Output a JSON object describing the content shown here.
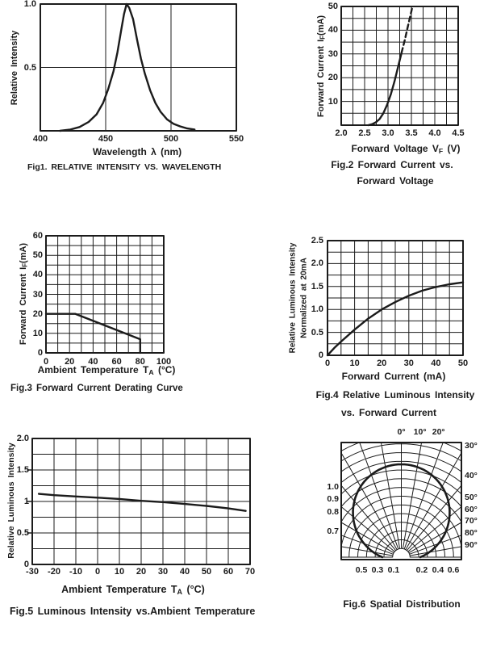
{
  "page": {
    "background": "#ffffff",
    "ink": "#1b1b1b"
  },
  "chart_data": [
    {
      "id": "fig1",
      "type": "line",
      "caption": "Fig1. RELATIVE INTENSITY VS. WAVELENGTH",
      "xlabel": {
        "pre": "Wavelength λ  (nm)",
        "sub": "",
        "post": ""
      },
      "ylabel": {
        "pre": "Relative Intensity",
        "sub": "",
        "post": ""
      },
      "xlim": [
        400,
        550
      ],
      "ylim": [
        0,
        1
      ],
      "xticks": [
        {
          "v": 400,
          "t": "400"
        },
        {
          "v": 450,
          "t": "450"
        },
        {
          "v": 500,
          "t": "500"
        },
        {
          "v": 550,
          "t": "550"
        }
      ],
      "yticks": [
        {
          "v": 0.5,
          "t": "0.5"
        },
        {
          "v": 1,
          "t": "1.0"
        }
      ],
      "xgrid": [
        450,
        500
      ],
      "ygrid": [
        0.5
      ],
      "series": [
        {
          "name": "relative-intensity-spectrum",
          "dash": false,
          "points": [
            [
              415,
              0
            ],
            [
              423,
              0.01
            ],
            [
              430,
              0.03
            ],
            [
              437,
              0.07
            ],
            [
              443,
              0.13
            ],
            [
              448,
              0.22
            ],
            [
              452,
              0.33
            ],
            [
              456,
              0.47
            ],
            [
              459,
              0.62
            ],
            [
              462,
              0.8
            ],
            [
              464,
              0.92
            ],
            [
              466,
              1.0
            ],
            [
              468,
              0.97
            ],
            [
              471,
              0.88
            ],
            [
              474,
              0.72
            ],
            [
              477,
              0.57
            ],
            [
              480,
              0.45
            ],
            [
              484,
              0.32
            ],
            [
              488,
              0.22
            ],
            [
              492,
              0.15
            ],
            [
              497,
              0.09
            ],
            [
              502,
              0.055
            ],
            [
              507,
              0.035
            ],
            [
              512,
              0.02
            ],
            [
              518,
              0.01
            ]
          ]
        }
      ]
    },
    {
      "id": "fig2",
      "type": "line",
      "caption": "Fig.2 Forward Current vs.",
      "caption2": "Forward Voltage",
      "xlabel": {
        "pre": "Forward Voltage V",
        "sub": "F",
        "post": " (V)"
      },
      "ylabel": {
        "pre": "Forward Current I",
        "sub": "F",
        "post": "(mA)"
      },
      "xlim": [
        2.0,
        4.5
      ],
      "ylim": [
        0,
        50
      ],
      "xticks": [
        {
          "v": 2.0,
          "t": "2.0"
        },
        {
          "v": 2.5,
          "t": "2.5"
        },
        {
          "v": 3.0,
          "t": "3.0"
        },
        {
          "v": 3.5,
          "t": "3.5"
        },
        {
          "v": 4.0,
          "t": "4.0"
        },
        {
          "v": 4.5,
          "t": "4.5"
        }
      ],
      "yticks": [
        {
          "v": 10,
          "t": "10"
        },
        {
          "v": 20,
          "t": "20"
        },
        {
          "v": 30,
          "t": "30"
        },
        {
          "v": 40,
          "t": "40"
        },
        {
          "v": 50,
          "t": "50"
        }
      ],
      "xgrid": [
        2.25,
        2.5,
        2.75,
        3.0,
        3.25,
        3.5,
        3.75,
        4.0,
        4.25
      ],
      "ygrid": [
        5,
        10,
        15,
        20,
        25,
        30,
        35,
        40,
        45
      ],
      "series": [
        {
          "name": "iv-curve-solid",
          "dash": false,
          "points": [
            [
              2.58,
              0
            ],
            [
              2.66,
              0.4
            ],
            [
              2.74,
              1.2
            ],
            [
              2.82,
              2.6
            ],
            [
              2.9,
              5
            ],
            [
              2.98,
              8.5
            ],
            [
              3.06,
              13
            ],
            [
              3.14,
              18.5
            ],
            [
              3.22,
              25
            ],
            [
              3.29,
              30.5
            ]
          ]
        },
        {
          "name": "iv-curve-dashed",
          "dash": true,
          "points": [
            [
              3.29,
              30.5
            ],
            [
              3.36,
              36
            ],
            [
              3.43,
              42
            ],
            [
              3.5,
              48
            ],
            [
              3.52,
              50
            ]
          ]
        }
      ]
    },
    {
      "id": "fig3",
      "type": "line",
      "caption": "Fig.3 Forward Current Derating Curve",
      "xlabel": {
        "pre": "Ambient Temperature T",
        "sub": "A",
        "post": " (°C)"
      },
      "ylabel": {
        "pre": "Forward Current I",
        "sub": "F",
        "post": "(mA)"
      },
      "xlim": [
        0,
        100
      ],
      "ylim": [
        0,
        60
      ],
      "xticks": [
        {
          "v": 0,
          "t": "0"
        },
        {
          "v": 20,
          "t": "20"
        },
        {
          "v": 40,
          "t": "40"
        },
        {
          "v": 60,
          "t": "60"
        },
        {
          "v": 80,
          "t": "80"
        },
        {
          "v": 100,
          "t": "100"
        }
      ],
      "yticks": [
        {
          "v": 0,
          "t": "0"
        },
        {
          "v": 10,
          "t": "10"
        },
        {
          "v": 20,
          "t": "20"
        },
        {
          "v": 30,
          "t": "30"
        },
        {
          "v": 40,
          "t": "40"
        },
        {
          "v": 50,
          "t": "50"
        },
        {
          "v": 60,
          "t": "60"
        }
      ],
      "xgrid": [
        10,
        20,
        30,
        40,
        50,
        60,
        70,
        80,
        90
      ],
      "ygrid": [
        5,
        10,
        15,
        20,
        25,
        30,
        35,
        40,
        45,
        50,
        55
      ],
      "series": [
        {
          "name": "derating-curve",
          "dash": false,
          "points": [
            [
              0,
              20
            ],
            [
              25,
              20
            ],
            [
              80,
              7
            ],
            [
              80,
              0
            ]
          ]
        }
      ]
    },
    {
      "id": "fig4",
      "type": "line",
      "caption": "Fig.4 Relative Luminous Intensity",
      "caption2": "vs. Forward Current",
      "xlabel": {
        "pre": "Forward Current (mA)",
        "sub": "",
        "post": ""
      },
      "ylabel": {
        "pre": "Relative Luminous Intensity",
        "sub": "",
        "post": ""
      },
      "ylabel2": {
        "pre": "Normalized at 20mA",
        "sub": "",
        "post": ""
      },
      "xlim": [
        0,
        50
      ],
      "ylim": [
        0,
        2.5
      ],
      "xticks": [
        {
          "v": 0,
          "t": "0"
        },
        {
          "v": 10,
          "t": "10"
        },
        {
          "v": 20,
          "t": "20"
        },
        {
          "v": 30,
          "t": "30"
        },
        {
          "v": 40,
          "t": "40"
        },
        {
          "v": 50,
          "t": "50"
        }
      ],
      "yticks": [
        {
          "v": 0,
          "t": "0"
        },
        {
          "v": 0.5,
          "t": "0.5"
        },
        {
          "v": 1.0,
          "t": "1.0"
        },
        {
          "v": 1.5,
          "t": "1.5"
        },
        {
          "v": 2.0,
          "t": "2.0"
        },
        {
          "v": 2.5,
          "t": "2.5"
        }
      ],
      "xgrid": [
        5,
        10,
        15,
        20,
        25,
        30,
        35,
        40,
        45
      ],
      "ygrid": [
        0.25,
        0.5,
        0.75,
        1.0,
        1.25,
        1.5,
        1.75,
        2.0,
        2.25
      ],
      "series": [
        {
          "name": "luminous-vs-current",
          "dash": false,
          "points": [
            [
              0,
              0
            ],
            [
              2.5,
              0.16
            ],
            [
              5,
              0.3
            ],
            [
              10,
              0.56
            ],
            [
              15,
              0.8
            ],
            [
              20,
              1.0
            ],
            [
              25,
              1.16
            ],
            [
              30,
              1.3
            ],
            [
              35,
              1.41
            ],
            [
              40,
              1.49
            ],
            [
              45,
              1.55
            ],
            [
              50,
              1.59
            ]
          ]
        }
      ]
    },
    {
      "id": "fig5",
      "type": "line",
      "caption": "Fig.5 Luminous Intensity vs.Ambient Temperature",
      "xlabel": {
        "pre": "Ambient Temperature T",
        "sub": "A",
        "post": " (°C)"
      },
      "ylabel": {
        "pre": "Relative Luminous Intensity",
        "sub": "",
        "post": ""
      },
      "xlim": [
        -30,
        70
      ],
      "ylim": [
        0,
        2
      ],
      "xticks": [
        {
          "v": -30,
          "t": "-30"
        },
        {
          "v": -20,
          "t": "-20"
        },
        {
          "v": -10,
          "t": "-10"
        },
        {
          "v": 0,
          "t": "0"
        },
        {
          "v": 10,
          "t": "10"
        },
        {
          "v": 20,
          "t": "20"
        },
        {
          "v": 30,
          "t": "30"
        },
        {
          "v": 40,
          "t": "40"
        },
        {
          "v": 50,
          "t": "50"
        },
        {
          "v": 60,
          "t": "60"
        },
        {
          "v": 70,
          "t": "70"
        }
      ],
      "yticks": [
        {
          "v": 0,
          "t": "0"
        },
        {
          "v": 0.5,
          "t": "0.5"
        },
        {
          "v": 1,
          "t": "1"
        },
        {
          "v": 1.5,
          "t": "1.5"
        },
        {
          "v": 2,
          "t": "2.0"
        }
      ],
      "xgrid": [
        -20,
        -10,
        0,
        10,
        20,
        30,
        40,
        50,
        60
      ],
      "ygrid": [
        0.25,
        0.5,
        0.75,
        1.0,
        1.25,
        1.5,
        1.75
      ],
      "out_ticks": [
        0.5,
        1,
        1.5
      ],
      "series": [
        {
          "name": "luminous-vs-temperature",
          "dash": false,
          "points": [
            [
              -27,
              1.12
            ],
            [
              -20,
              1.1
            ],
            [
              -10,
              1.08
            ],
            [
              0,
              1.06
            ],
            [
              10,
              1.04
            ],
            [
              20,
              1.01
            ],
            [
              30,
              0.99
            ],
            [
              40,
              0.96
            ],
            [
              50,
              0.93
            ],
            [
              60,
              0.89
            ],
            [
              68,
              0.85
            ]
          ]
        }
      ]
    },
    {
      "id": "fig6",
      "type": "polar",
      "caption": "Fig.6 Spatial Distribution",
      "angle_range": [
        -90,
        90
      ],
      "angle_step": 10,
      "rings": {
        "from": 0.1,
        "to": 1.4,
        "step": 0.1
      },
      "hub_radius": 0.1,
      "lobe": {
        "circle_offset": 0.51,
        "circle_radius": 0.555
      },
      "top_labels": [
        {
          "t": "0°",
          "fx": 0.5
        },
        {
          "t": "10°",
          "fx": 0.655
        },
        {
          "t": "20°",
          "fx": 0.81
        }
      ],
      "right_labels": [
        {
          "t": "30°",
          "fy": 0.03
        },
        {
          "t": "40°",
          "fy": 0.28
        },
        {
          "t": "50°",
          "fy": 0.47
        },
        {
          "t": "60°",
          "fy": 0.57
        },
        {
          "t": "70°",
          "fy": 0.67
        },
        {
          "t": "80°",
          "fy": 0.77
        },
        {
          "t": "90°",
          "fy": 0.875
        }
      ],
      "left_labels": [
        {
          "t": "1.0",
          "fy": 0.38
        },
        {
          "t": "0.9",
          "fy": 0.48
        },
        {
          "t": "0.8",
          "fy": 0.59
        },
        {
          "t": "0.7",
          "fy": 0.76
        }
      ],
      "bottom_labels": [
        {
          "t": "0.5",
          "fx": 0.168
        },
        {
          "t": "0.3",
          "fx": 0.302
        },
        {
          "t": "0.1",
          "fx": 0.436
        },
        {
          "t": "0.2",
          "fx": 0.671
        },
        {
          "t": "0.4",
          "fx": 0.805
        },
        {
          "t": "0.6",
          "fx": 0.933
        }
      ]
    }
  ]
}
